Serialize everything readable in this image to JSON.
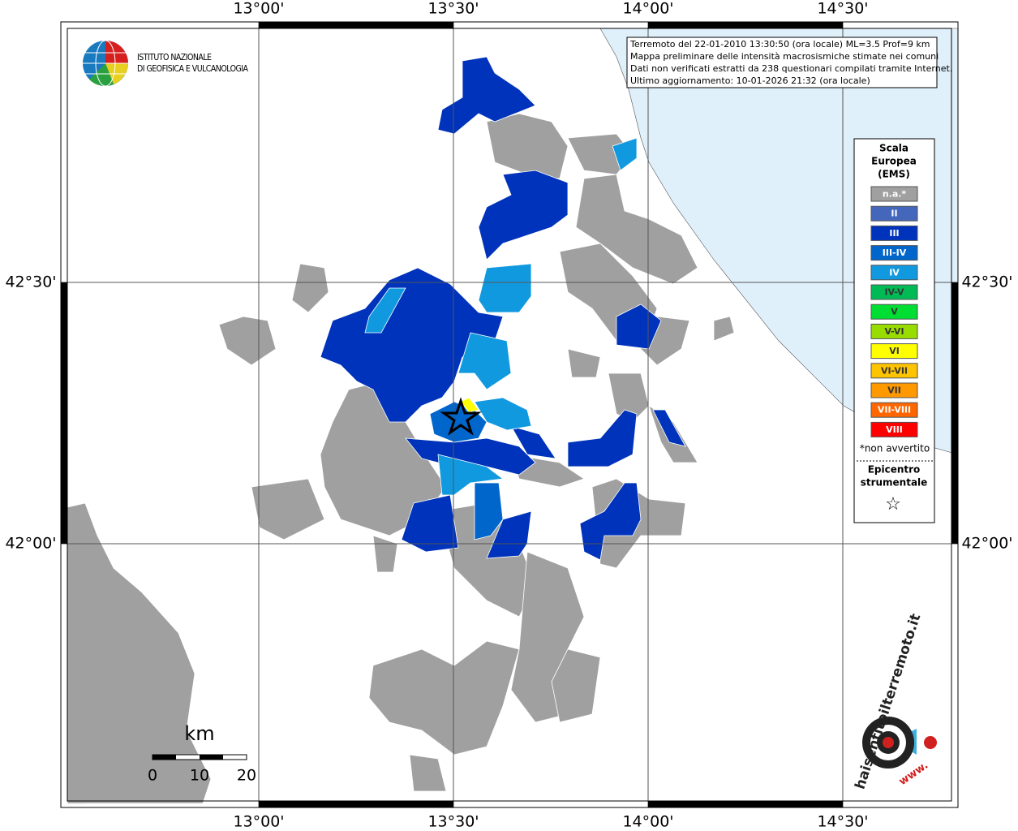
{
  "info_box": {
    "lines": [
      "Terremoto del 22-01-2010 13:30:50 (ora locale) ML=3.5 Prof=9 km",
      "Mappa preliminare delle intensità macrosismiche stimate nei comuni",
      "Dati non verificati estratti da 238 questionari compilati tramite Internet.",
      "Ultimo aggiornamento: 10-01-2026 21:32 (ora locale)"
    ]
  },
  "logo_ingv": {
    "lines": [
      "ISTITUTO NAZIONALE",
      "DI GEOFISICA E VULCANOLOGIA"
    ]
  },
  "grid": {
    "lon_labels": [
      "13°00'",
      "13°30'",
      "14°00'",
      "14°30'"
    ],
    "lat_labels": [
      "42°30'",
      "42°00'"
    ]
  },
  "legend": {
    "title": [
      "Scala",
      "Europea",
      "(EMS)"
    ],
    "items": [
      {
        "label": "n.a.*",
        "color": "#a0a0a0"
      },
      {
        "label": "II",
        "color": "#4466bb"
      },
      {
        "label": "III",
        "color": "#0033bb"
      },
      {
        "label": "III-IV",
        "color": "#0066cc"
      },
      {
        "label": "IV",
        "color": "#1199e0"
      },
      {
        "label": "IV-V",
        "color": "#00bb55"
      },
      {
        "label": "V",
        "color": "#00dd33"
      },
      {
        "label": "V-VI",
        "color": "#99dd00"
      },
      {
        "label": "VI",
        "color": "#ffff00"
      },
      {
        "label": "VI-VII",
        "color": "#ffc400"
      },
      {
        "label": "VII",
        "color": "#ff9900"
      },
      {
        "label": "VII-VIII",
        "color": "#ff6600"
      },
      {
        "label": "VIII",
        "color": "#ff0000"
      }
    ],
    "note": "*non avvertito",
    "epicenter": [
      "Epicentro",
      "strumentale"
    ],
    "epicenter_symbol": "☆"
  },
  "scale_bar": {
    "unit": "km",
    "ticks": [
      0,
      10,
      20
    ]
  },
  "logo_hst": {
    "text": "haisentitoilterremoto.it",
    "www": "www."
  }
}
